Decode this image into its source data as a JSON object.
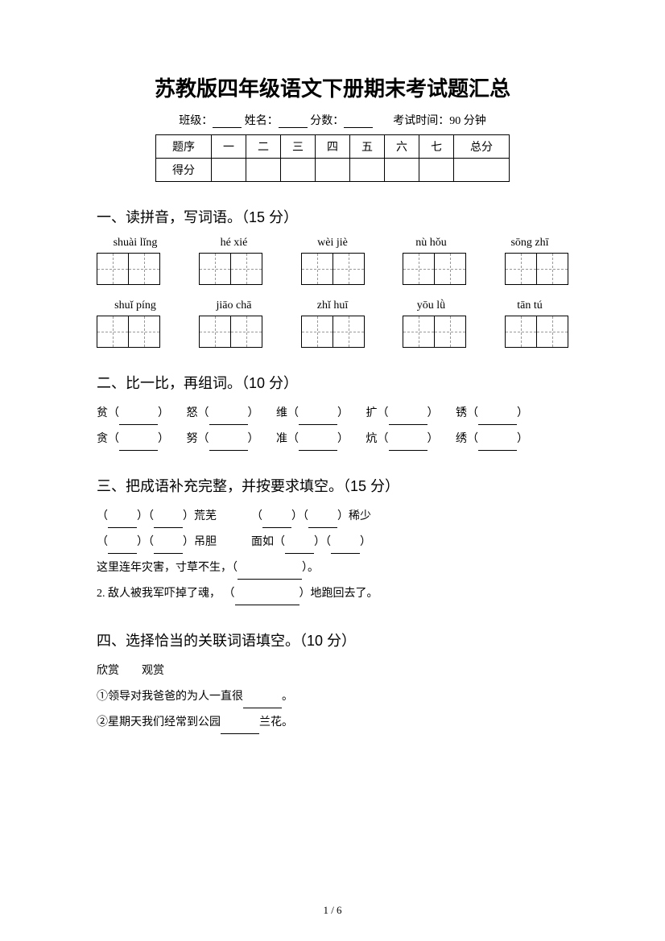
{
  "title": "苏教版四年级语文下册期末考试题汇总",
  "meta": {
    "class_label": "班级：",
    "name_label": "姓名：",
    "score_label": "分数：",
    "time_label": "考试时间：90 分钟"
  },
  "score_table": {
    "row1": [
      "题序",
      "一",
      "二",
      "三",
      "四",
      "五",
      "六",
      "七",
      "总分"
    ],
    "row2_label": "得分"
  },
  "s1": {
    "heading": "一、读拼音，写词语。（15 分）",
    "row1": [
      "shuài lǐng",
      "hé xié",
      "wèi jiè",
      "nù hǒu",
      "sōng zhī"
    ],
    "row2": [
      "shuǐ píng",
      "jiāo chā",
      "zhǐ huī",
      "yōu lǜ",
      "tān tú"
    ]
  },
  "s2": {
    "heading": "二、比一比，再组词。（10 分）",
    "line1": [
      "贫（",
      "）",
      "怒（",
      "）",
      "维（",
      "）",
      "扩（",
      "）",
      "锈（",
      "）"
    ],
    "line2": [
      "贪（",
      "）",
      "努（",
      "）",
      "准（",
      "）",
      "炕（",
      "）",
      "绣（",
      "）"
    ]
  },
  "s3": {
    "heading": "三、把成语补充完整，并按要求填空。（15 分）",
    "l1a": "（",
    "l1b": "）（",
    "l1c": "）荒芜",
    "l1d": "（",
    "l1e": "）（",
    "l1f": "）稀少",
    "l2a": "（",
    "l2b": "）（",
    "l2c": "）吊胆",
    "l2d": "面如（",
    "l2e": "）（",
    "l2f": "）",
    "l3": "这里连年灾害，寸草不生，（",
    "l3b": "）。",
    "l4": "2. 敌人被我军吓掉了魂，  （",
    "l4b": "）地跑回去了。"
  },
  "s4": {
    "heading": "四、选择恰当的关联词语填空。（10 分）",
    "words": "欣赏　　观赏",
    "l1a": "①领导对我爸爸的为人一直很",
    "l1b": "。",
    "l2a": "②星期天我们经常到公园",
    "l2b": "兰花。"
  },
  "pager": "1  /  6"
}
